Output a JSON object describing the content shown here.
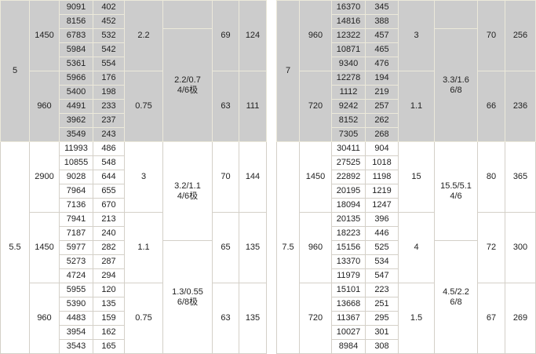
{
  "tables": [
    {
      "cols": [
        37,
        38,
        43,
        40,
        49,
        63,
        34,
        35
      ],
      "blocks": [
        {
          "shade": "gray",
          "power": "5",
          "speeds": [
            {
              "speed": "1450",
              "rows": [
                [
                  "9091",
                  "402"
                ],
                [
                  "8156",
                  "452"
                ],
                [
                  "6783",
                  "532"
                ],
                [
                  "5984",
                  "542"
                ],
                [
                  "5361",
                  "554"
                ]
              ],
              "c5": "2.2",
              "c7": "69",
              "c8": "124"
            },
            {
              "speed": "960",
              "rows": [
                [
                  "5966",
                  "176"
                ],
                [
                  "5400",
                  "198"
                ],
                [
                  "4491",
                  "233"
                ],
                [
                  "3962",
                  "237"
                ],
                [
                  "3549",
                  "243"
                ]
              ],
              "c5": "0.75",
              "c7": "63",
              "c8": "111"
            }
          ],
          "c6": [
            {
              "span": 2,
              "text": ""
            },
            {
              "span": 8,
              "text": "2.2/0.7\n4/6极"
            }
          ]
        },
        {
          "shade": "white",
          "power": "5.5",
          "speeds": [
            {
              "speed": "2900",
              "rows": [
                [
                  "11993",
                  "486"
                ],
                [
                  "10855",
                  "548"
                ],
                [
                  "9028",
                  "644"
                ],
                [
                  "7964",
                  "655"
                ],
                [
                  "7136",
                  "670"
                ]
              ],
              "c5": "3",
              "c7": "70",
              "c8": "144"
            },
            {
              "speed": "1450",
              "rows": [
                [
                  "7941",
                  "213"
                ],
                [
                  "7187",
                  "240"
                ],
                [
                  "5977",
                  "282"
                ],
                [
                  "5273",
                  "287"
                ],
                [
                  "4724",
                  "294"
                ]
              ],
              "c5": "1.1",
              "c7": "65",
              "c8": "135"
            },
            {
              "speed": "960",
              "rows": [
                [
                  "5955",
                  "120"
                ],
                [
                  "5390",
                  "135"
                ],
                [
                  "4483",
                  "159"
                ],
                [
                  "3954",
                  "162"
                ],
                [
                  "3543",
                  "165"
                ]
              ],
              "c5": "0.75",
              "c7": "63",
              "c8": "135"
            }
          ],
          "c6": [
            {
              "span": 7,
              "text": "3.2/1.1\n4/6极"
            },
            {
              "span": 8,
              "text": "1.3/0.55\n6/8极"
            }
          ]
        }
      ]
    },
    {
      "cols": [
        29,
        41,
        43,
        42,
        46,
        55,
        35,
        39
      ],
      "blocks": [
        {
          "shade": "gray",
          "power": "7",
          "speeds": [
            {
              "speed": "960",
              "rows": [
                [
                  "16370",
                  "345"
                ],
                [
                  "14816",
                  "388"
                ],
                [
                  "12322",
                  "457"
                ],
                [
                  "10871",
                  "465"
                ],
                [
                  "9340",
                  "476"
                ]
              ],
              "c5": "3",
              "c7": "70",
              "c8": "256"
            },
            {
              "speed": "720",
              "rows": [
                [
                  "12278",
                  "194"
                ],
                [
                  "1112",
                  "219"
                ],
                [
                  "9242",
                  "257"
                ],
                [
                  "8152",
                  "262"
                ],
                [
                  "7305",
                  "268"
                ]
              ],
              "c5": "1.1",
              "c7": "66",
              "c8": "236"
            }
          ],
          "c6": [
            {
              "span": 2,
              "text": ""
            },
            {
              "span": 8,
              "text": "3.3/1.6\n6/8"
            }
          ]
        },
        {
          "shade": "white",
          "power": "7.5",
          "speeds": [
            {
              "speed": "1450",
              "rows": [
                [
                  "30411",
                  "904"
                ],
                [
                  "27525",
                  "1018"
                ],
                [
                  "22892",
                  "1198"
                ],
                [
                  "20195",
                  "1219"
                ],
                [
                  "18094",
                  "1247"
                ]
              ],
              "c5": "15",
              "c7": "80",
              "c8": "365"
            },
            {
              "speed": "960",
              "rows": [
                [
                  "20135",
                  "396"
                ],
                [
                  "18223",
                  "446"
                ],
                [
                  "15156",
                  "525"
                ],
                [
                  "13370",
                  "534"
                ],
                [
                  "11979",
                  "547"
                ]
              ],
              "c5": "4",
              "c7": "72",
              "c8": "300"
            },
            {
              "speed": "720",
              "rows": [
                [
                  "15101",
                  "223"
                ],
                [
                  "13668",
                  "251"
                ],
                [
                  "11367",
                  "295"
                ],
                [
                  "10027",
                  "301"
                ],
                [
                  "8984",
                  "308"
                ]
              ],
              "c5": "1.5",
              "c7": "67",
              "c8": "269"
            }
          ],
          "c6": [
            {
              "span": 7,
              "text": "15.5/5.1\n4/6"
            },
            {
              "span": 8,
              "text": "4.5/2.2\n6/8"
            }
          ]
        }
      ]
    }
  ]
}
